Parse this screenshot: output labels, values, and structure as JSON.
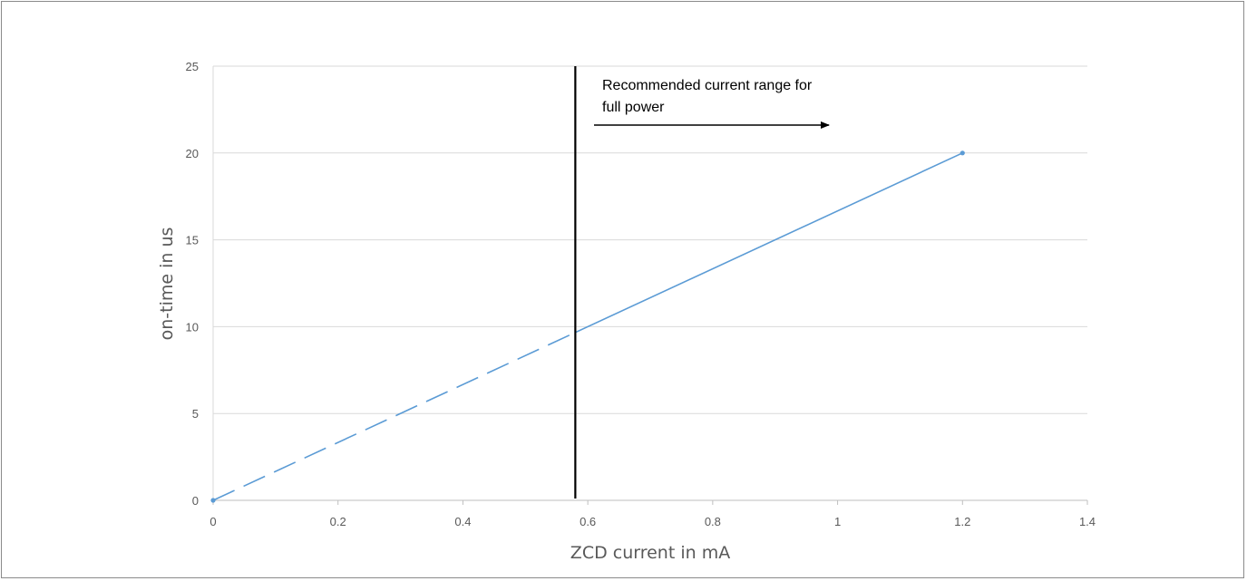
{
  "chart_data": {
    "type": "line",
    "title": "",
    "xlabel": "ZCD current in mA",
    "ylabel": "on-time in us",
    "xlim": [
      0,
      1.4
    ],
    "ylim": [
      0,
      25
    ],
    "xticks": [
      0,
      0.2,
      0.4,
      0.6,
      0.8,
      1,
      1.2,
      1.4
    ],
    "yticks": [
      0,
      5,
      10,
      15,
      20,
      25
    ],
    "xtick_labels": [
      "0",
      "0.2",
      "0.4",
      "0.6",
      "0.8",
      "1",
      "1.2",
      "1.4"
    ],
    "ytick_labels": [
      "0",
      "5",
      "10",
      "15",
      "20",
      "25"
    ],
    "grid": true,
    "series": [
      {
        "x": [
          0,
          1.2
        ],
        "y": [
          0,
          20
        ],
        "color": "#5b9bd5",
        "style": "dashed below threshold, solid above"
      }
    ],
    "threshold_x": 0.58,
    "threshold_color": "#000000",
    "annotation": {
      "lines": [
        "Recommended current range for",
        "full power"
      ],
      "arrow_direction": "right"
    }
  }
}
